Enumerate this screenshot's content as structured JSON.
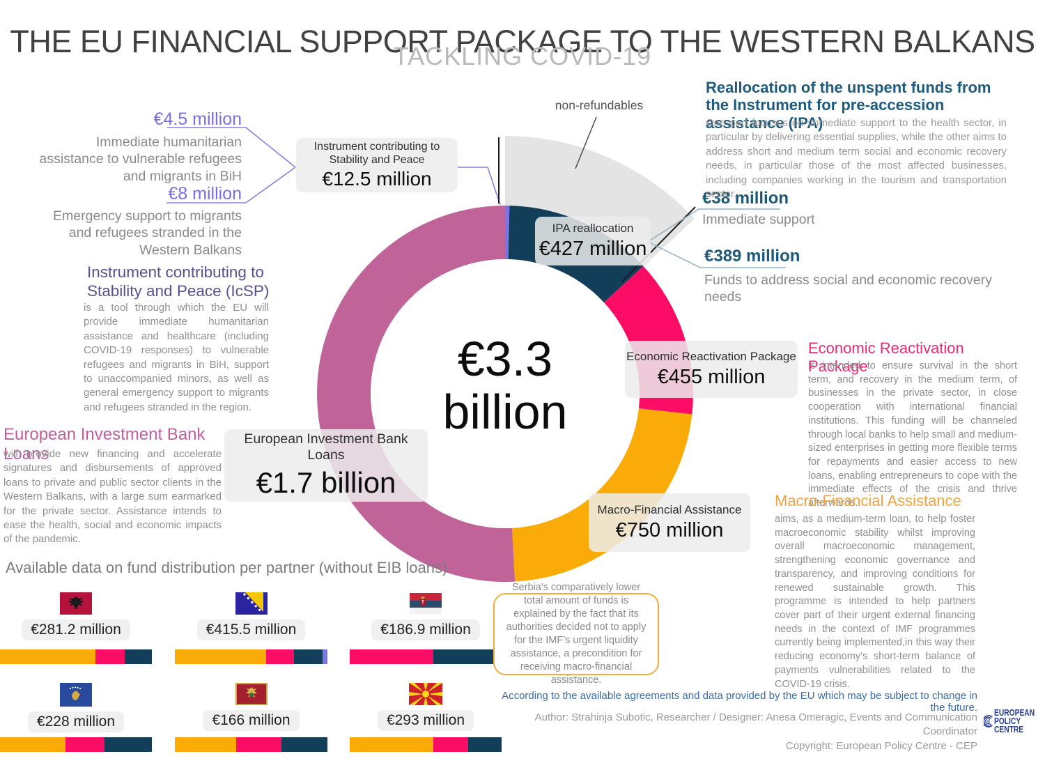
{
  "header": {
    "title": "THE EU FINANCIAL SUPPORT PACKAGE TO THE WESTERN BALKANS",
    "subtitle": "TACKLING COVID-19"
  },
  "chart_data": {
    "type": "pie",
    "title": "EU financial support package to the Western Balkans, total €3.3 billion",
    "units": "EUR millions",
    "center_label": {
      "line1": "€3.3",
      "line2": "billion"
    },
    "segments": [
      {
        "name": "Instrument contributing to Stability and Peace",
        "value": 12.5,
        "color": "#7b74e4"
      },
      {
        "name": "IPA reallocation",
        "value": 427,
        "color": "#123e5a"
      },
      {
        "name": "Economic Reactivation Package",
        "value": 455,
        "color": "#fb0d66"
      },
      {
        "name": "Macro-Financial Assistance",
        "value": 750,
        "color": "#fbab07"
      },
      {
        "name": "European Investment Bank Loans",
        "value": 1700,
        "color": "#bf6399"
      }
    ],
    "overlay": {
      "name": "non-refundables",
      "value": 439.5,
      "color": "#e4e4e4",
      "covers": [
        "Instrument contributing to Stability and Peace",
        "IPA reallocation"
      ]
    },
    "legend_position": "labels-on-chart",
    "ipa_breakdown": [
      {
        "amount": "€38 million",
        "label": "Immediate support"
      },
      {
        "amount": "€389 million",
        "label": "Funds to address social and economic recovery needs"
      }
    ]
  },
  "boxes": {
    "icsp": {
      "name": "Instrument contributing to Stability and Peace",
      "amount": "€12.5 million"
    },
    "ipa": {
      "name": "IPA reallocation",
      "amount": "€427 million"
    },
    "erp": {
      "name": "Economic Reactivation Package",
      "amount": "€455 million"
    },
    "mfa": {
      "name": "Macro-Financial Assistance",
      "amount": "€750 million"
    },
    "eib": {
      "name": "European Investment Bank Loans",
      "amount": "€1.7 billion"
    }
  },
  "annotations": {
    "non_refundables": "non-refundables",
    "a45": {
      "amount": "€4.5 million",
      "text": "Immediate humanitarian assistance to vulnerable refugees and migrants in BiH"
    },
    "a8": {
      "amount": "€8 million",
      "text": "Emergency support to migrants and refugees stranded in the Western Balkans"
    },
    "e38": {
      "amount": "€38 million",
      "label": "Immediate support"
    },
    "e389": {
      "amount": "€389 million",
      "label": "Funds to address social and economic recovery needs"
    }
  },
  "descriptions": {
    "icsp": {
      "title": "Instrument contributing to Stability and Peace (IcSP)",
      "body": "is a tool through which the EU will provide immediate humanitarian assistance and healthcare (including COVID-19 responses) to vulnerable refugees and migrants in BiH, support to unaccompanied minors, as well as general emergency support to migrants and refugees stranded in the region."
    },
    "eib": {
      "title": "European Investment Bank Loans",
      "body": "will provide new financing and accelerate signatures and disbursements of approved loans to private and public sector clients in the Western Balkans, with a large sum earmarked for the private sector. Assistance intends to ease the health, social and economic impacts of the pandemic."
    },
    "ipa": {
      "title": "Reallocation of the unspent funds from the Instrument for pre-accession assistance (IPA)",
      "body": "One part focuses on immediate support to the health sector, in particular by delivering essential supplies, while the other aims to address short and medium term social and economic recovery needs, in particular those of the most affected businesses, including companies working in the tourism and transportation sector."
    },
    "erp": {
      "title": "Economic Reactivation Package",
      "body": "is intended to ensure survival in the short term, and recovery in the medium term, of businesses in the private sector, in close cooperation with international financial institutions. This funding will be channeled through local banks to help small and medium-sized enterprises in getting more flexible terms for repayments and easier access to new loans, enabling entrepreneurs to cope with the immediate effects of the crisis and thrive afterwards."
    },
    "mfa": {
      "title": "Macro-Financial Assistance",
      "body": "aims, as a medium-term loan, to help foster macroeconomic stability whilst improving overall macroeconomic management, strengthening economic governance and transparency, and improving conditions for renewed sustainable growth. This programme is intended to help partners cover part of their urgent external financing needs in the context of IMF programmes currently being implemented,in this way their reducing economy’s short-term balance of payments vulnerabilities related to the COVID-19 crisis."
    }
  },
  "partners": {
    "heading": "Available data on fund distribution per partner (without EIB loans)",
    "note": "Serbia's comparatively lower total amount of funds is explained by the fact that its authorities decided not to apply for the IMF’s urgent liquidity assistance, a precondition for receiving macro-financial assistance.",
    "items": [
      {
        "country": "Albania",
        "amount": "€281.2 million",
        "bar": [
          {
            "name": "macro-financial-assistance",
            "color": "#fbab07",
            "pct": 63
          },
          {
            "name": "economic-reactivation-package",
            "color": "#fb0d66",
            "pct": 19
          },
          {
            "name": "ipa-reallocation",
            "color": "#123e5a",
            "pct": 18
          }
        ]
      },
      {
        "country": "Bosnia and Herzegovina",
        "amount": "€415.5 million",
        "bar": [
          {
            "name": "macro-financial-assistance",
            "color": "#fbab07",
            "pct": 60
          },
          {
            "name": "economic-reactivation-package",
            "color": "#fb0d66",
            "pct": 18
          },
          {
            "name": "ipa-reallocation",
            "color": "#123e5a",
            "pct": 19
          },
          {
            "name": "icsp",
            "color": "#7b74e4",
            "pct": 3
          }
        ]
      },
      {
        "country": "Serbia",
        "amount": "€186.9 million",
        "bar": [
          {
            "name": "economic-reactivation-package",
            "color": "#fb0d66",
            "pct": 55
          },
          {
            "name": "ipa-reallocation",
            "color": "#123e5a",
            "pct": 45
          }
        ]
      },
      {
        "country": "Kosovo",
        "amount": "€228 million",
        "bar": [
          {
            "name": "macro-financial-assistance",
            "color": "#fbab07",
            "pct": 43
          },
          {
            "name": "economic-reactivation-package",
            "color": "#fb0d66",
            "pct": 26
          },
          {
            "name": "ipa-reallocation",
            "color": "#123e5a",
            "pct": 31
          }
        ]
      },
      {
        "country": "Montenegro",
        "amount": "€166 million",
        "bar": [
          {
            "name": "macro-financial-assistance",
            "color": "#fbab07",
            "pct": 40
          },
          {
            "name": "economic-reactivation-package",
            "color": "#fb0d66",
            "pct": 30
          },
          {
            "name": "ipa-reallocation",
            "color": "#123e5a",
            "pct": 30
          }
        ]
      },
      {
        "country": "North Macedonia",
        "amount": "€293 million",
        "bar": [
          {
            "name": "macro-financial-assistance",
            "color": "#fbab07",
            "pct": 55
          },
          {
            "name": "economic-reactivation-package",
            "color": "#fb0d66",
            "pct": 23
          },
          {
            "name": "ipa-reallocation",
            "color": "#123e5a",
            "pct": 22
          }
        ]
      }
    ]
  },
  "footer": {
    "disclaimer": "According to the available agreements and data provided by the EU which may be subject to change in the future.",
    "author": "Author: Strahinja Subotic, Researcher / Designer: Anesa Omeragic, Events and Communication Coordinator",
    "copyright": "Copyright: European Policy Centre - CEP",
    "logo": {
      "line1": "EUROPEAN",
      "line2": "POLICY",
      "line3": "CENTRE"
    }
  },
  "colors": {
    "eib": "#bf6399",
    "mfa": "#fbab07",
    "erp": "#fb0d66",
    "ipa": "#123e5a",
    "icsp": "#7b74e4",
    "non_refundables": "#e4e4e4",
    "accent_purple": "#7b6de4",
    "accent_teal": "#1d5878",
    "footer_blue": "#3a6da8"
  }
}
